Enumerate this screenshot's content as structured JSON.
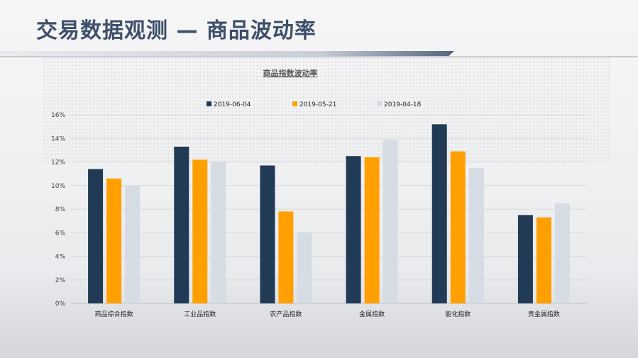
{
  "slide": {
    "title": "交易数据观测 — 商品波动率"
  },
  "chart_data": {
    "type": "bar",
    "title": "商品指数波动率",
    "categories": [
      "商品综合指数",
      "工业品指数",
      "农产品指数",
      "金属指数",
      "能化指数",
      "贵金属指数"
    ],
    "series": [
      {
        "name": "2019-06-04",
        "color": "#213a56",
        "values": [
          11.4,
          13.3,
          11.7,
          12.5,
          15.2,
          7.5
        ]
      },
      {
        "name": "2019-05-21",
        "color": "#ffa000",
        "values": [
          10.6,
          12.2,
          7.8,
          12.4,
          12.9,
          7.3
        ]
      },
      {
        "name": "2019-04-18",
        "color": "#d6dce4",
        "values": [
          10.0,
          12.0,
          6.0,
          13.9,
          11.5,
          8.5
        ]
      }
    ],
    "ylim": [
      0,
      16
    ],
    "yticks": [
      "0%",
      "2%",
      "4%",
      "6%",
      "8%",
      "10%",
      "12%",
      "14%",
      "16%"
    ],
    "unit": "%",
    "grid": true,
    "legend": "top-center"
  }
}
